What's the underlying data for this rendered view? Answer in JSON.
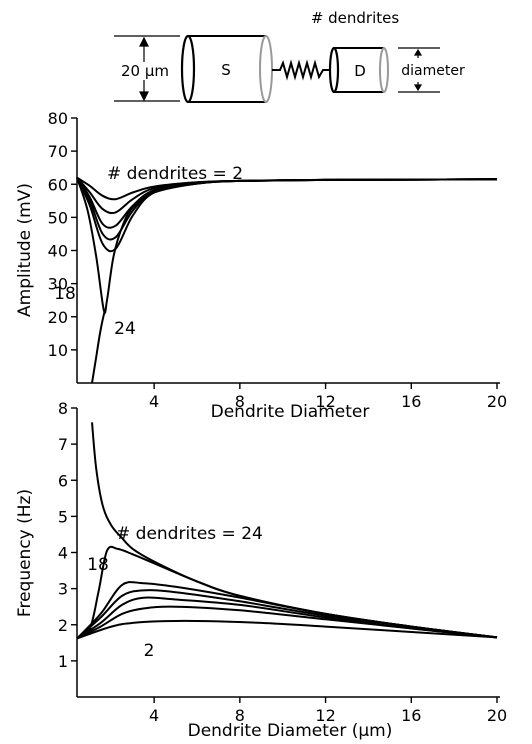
{
  "schematic": {
    "soma_label": "S",
    "dendrite_label": "D",
    "soma_size_label": "20 µm",
    "dendrite_count_label": "# dendrites",
    "dendrite_size_label": "diameter"
  },
  "chart_data": [
    {
      "type": "line",
      "title": "",
      "xlabel": "Dendrite Diameter",
      "ylabel": "Amplitude (mV)",
      "xlim": [
        0.4,
        20
      ],
      "ylim": [
        0,
        80
      ],
      "xticks": [
        "4",
        "8",
        "12",
        "16",
        "20"
      ],
      "yticks": [
        "10",
        "20",
        "30",
        "40",
        "50",
        "60",
        "70",
        "80"
      ],
      "annotations": [
        "# dendrites = 2",
        "18",
        "24"
      ],
      "grid": false,
      "series": [
        {
          "x": [
            0.4,
            1.0,
            1.6,
            2.2,
            3.0,
            4.0,
            6.0,
            8.0,
            12.0,
            16.0,
            20.0
          ],
          "y": [
            62,
            59.5,
            56.5,
            55.5,
            57.5,
            59.3,
            60.6,
            61.0,
            61.3,
            61.4,
            61.5
          ]
        },
        {
          "x": [
            0.4,
            1.0,
            1.6,
            2.2,
            3.0,
            4.0,
            6.0,
            8.0,
            12.0,
            16.0,
            20.0
          ],
          "y": [
            62,
            57.5,
            52.5,
            51.5,
            55.5,
            58.8,
            60.5,
            61.0,
            61.3,
            61.4,
            61.5
          ]
        },
        {
          "x": [
            0.4,
            1.0,
            1.6,
            2.2,
            3.0,
            4.0,
            6.0,
            8.0,
            12.0,
            16.0,
            20.0
          ],
          "y": [
            62,
            56.0,
            48.0,
            47.5,
            53.5,
            58.2,
            60.4,
            61.0,
            61.3,
            61.4,
            61.5
          ]
        },
        {
          "x": [
            0.4,
            1.0,
            1.6,
            2.2,
            3.0,
            4.0,
            6.0,
            8.0,
            12.0,
            16.0,
            20.0
          ],
          "y": [
            62,
            55.0,
            45.0,
            44.0,
            52.0,
            57.8,
            60.3,
            61.0,
            61.3,
            61.4,
            61.5
          ]
        },
        {
          "x": [
            0.4,
            1.0,
            1.6,
            2.2,
            3.0,
            4.0,
            6.0,
            8.0,
            12.0,
            16.0,
            20.0
          ],
          "y": [
            62,
            53.5,
            42.0,
            40.5,
            50.5,
            57.5,
            60.2,
            61.0,
            61.3,
            61.4,
            61.5
          ]
        },
        {
          "x": [
            0.4,
            0.9,
            1.3,
            1.65,
            1.8,
            2.1,
            2.5,
            3.0,
            4.0,
            6.0,
            8.0,
            12.0,
            16.0,
            20.0
          ],
          "y": [
            62,
            52,
            38,
            22,
            25,
            38,
            47,
            53,
            57.5,
            60.2,
            61.0,
            61.3,
            61.4,
            61.5
          ]
        },
        {
          "x": [
            1.1,
            1.3,
            1.5,
            1.7
          ],
          "y": [
            0,
            8,
            16,
            22
          ]
        }
      ]
    },
    {
      "type": "line",
      "title": "",
      "xlabel": "Dendrite Diameter (µm)",
      "ylabel": "Frequency (Hz)",
      "xlim": [
        0.4,
        20
      ],
      "ylim": [
        0,
        8
      ],
      "xticks": [
        "4",
        "8",
        "12",
        "16",
        "20"
      ],
      "yticks": [
        "1",
        "2",
        "3",
        "4",
        "5",
        "6",
        "7",
        "8"
      ],
      "annotations": [
        "# dendrites = 24",
        "18",
        "2"
      ],
      "grid": false,
      "series": [
        {
          "x": [
            1.1,
            1.3,
            1.6,
            2.0,
            2.5,
            3.0,
            4.0,
            6.0,
            8.0,
            12.0,
            16.0,
            20.0
          ],
          "y": [
            7.6,
            6.3,
            5.3,
            4.75,
            4.4,
            4.1,
            3.75,
            3.2,
            2.8,
            2.3,
            1.95,
            1.65
          ]
        },
        {
          "x": [
            0.4,
            1.0,
            1.4,
            1.8,
            2.3,
            3.0,
            4.0,
            6.0,
            8.0,
            12.0,
            16.0,
            20.0
          ],
          "y": [
            1.62,
            1.9,
            2.9,
            4.05,
            4.1,
            3.95,
            3.7,
            3.2,
            2.8,
            2.3,
            1.95,
            1.65
          ]
        },
        {
          "x": [
            0.4,
            1.5,
            2.5,
            3.5,
            5.0,
            8.0,
            12.0,
            16.0,
            20.0
          ],
          "y": [
            1.62,
            2.3,
            3.1,
            3.15,
            3.05,
            2.75,
            2.3,
            1.95,
            1.65
          ]
        },
        {
          "x": [
            0.4,
            1.5,
            2.5,
            3.5,
            5.0,
            8.0,
            12.0,
            16.0,
            20.0
          ],
          "y": [
            1.62,
            2.2,
            2.8,
            2.95,
            2.9,
            2.65,
            2.25,
            1.95,
            1.65
          ]
        },
        {
          "x": [
            0.4,
            1.5,
            2.5,
            3.5,
            5.0,
            8.0,
            12.0,
            16.0,
            20.0
          ],
          "y": [
            1.62,
            2.05,
            2.55,
            2.75,
            2.7,
            2.55,
            2.2,
            1.9,
            1.65
          ]
        },
        {
          "x": [
            0.4,
            1.5,
            2.5,
            3.5,
            5.0,
            8.0,
            12.0,
            16.0,
            20.0
          ],
          "y": [
            1.62,
            1.95,
            2.3,
            2.45,
            2.5,
            2.4,
            2.15,
            1.9,
            1.65
          ]
        },
        {
          "x": [
            0.4,
            2.0,
            3.0,
            4.5,
            6.5,
            9.0,
            12.0,
            16.0,
            20.0
          ],
          "y": [
            1.62,
            1.95,
            2.05,
            2.1,
            2.1,
            2.05,
            1.95,
            1.8,
            1.65
          ]
        }
      ]
    }
  ]
}
